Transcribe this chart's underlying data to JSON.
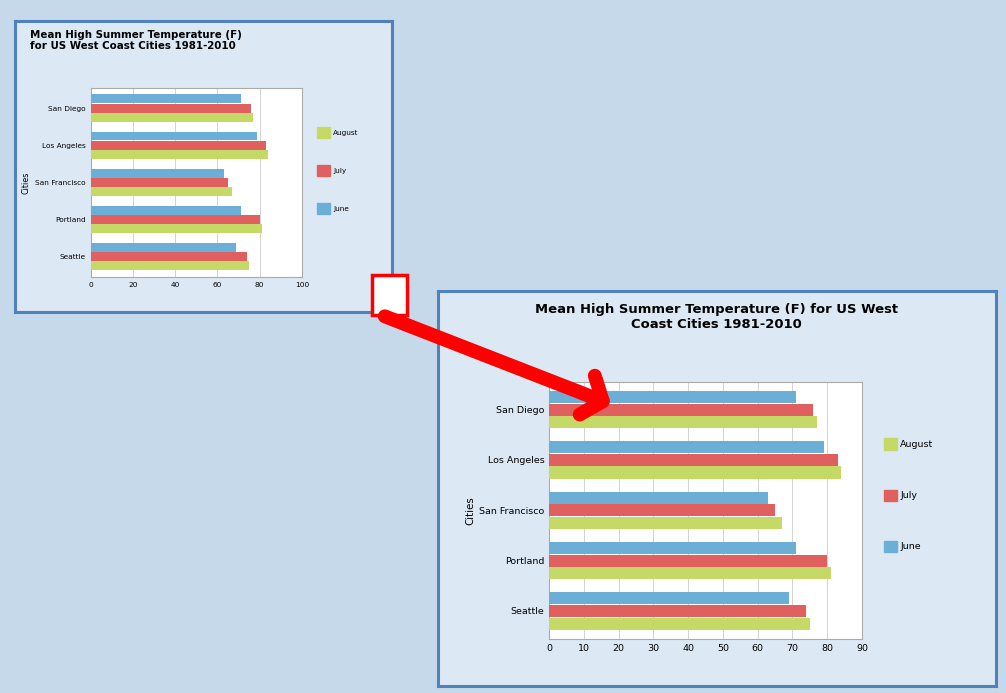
{
  "title1": "Mean High Summer Temperature (F)\nfor US West Coast Cities 1981-2010",
  "title2": "Mean High Summer Temperature (F) for US West\nCoast Cities 1981-2010",
  "cities": [
    "San Diego",
    "Los Angeles",
    "San Francisco",
    "Portland",
    "Seattle"
  ],
  "august": [
    77,
    84,
    67,
    81,
    75
  ],
  "july": [
    76,
    83,
    65,
    80,
    74
  ],
  "june": [
    71,
    79,
    63,
    71,
    69
  ],
  "color_august": "#c4d966",
  "color_july": "#e06060",
  "color_june": "#6baed6",
  "chart1_xlim": [
    0,
    100
  ],
  "chart1_xticks": [
    0,
    20,
    40,
    60,
    80,
    100
  ],
  "chart2_xlim": [
    0,
    90
  ],
  "chart2_xticks": [
    0,
    10,
    20,
    30,
    40,
    50,
    60,
    70,
    80,
    90
  ],
  "ylabel": "Cities",
  "fig_bg": "#c5d9ea",
  "chart_outer_bg": "#dce9f5",
  "chart_inner_bg": "#ffffff",
  "grid_color": "#cccccc",
  "border_color": "#4f81bd",
  "legend_labels": [
    "August",
    "July",
    "June"
  ]
}
